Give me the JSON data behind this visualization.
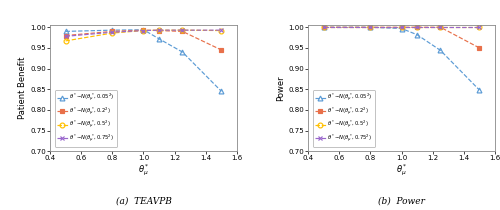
{
  "x": [
    0.5,
    0.8,
    1.0,
    1.1,
    1.25,
    1.5
  ],
  "teavpb": {
    "line1": [
      0.99,
      0.993,
      0.994,
      0.972,
      0.94,
      0.845
    ],
    "line2": [
      0.98,
      0.99,
      0.993,
      0.992,
      0.99,
      0.945
    ],
    "line3": [
      0.967,
      0.986,
      0.992,
      0.993,
      0.993,
      0.992
    ],
    "line4": [
      0.978,
      0.988,
      0.992,
      0.993,
      0.993,
      0.993
    ]
  },
  "power": {
    "line1": [
      1.0,
      1.0,
      0.997,
      0.982,
      0.944,
      0.848
    ],
    "line2": [
      1.0,
      1.0,
      1.0,
      1.0,
      1.0,
      0.95
    ],
    "line3": [
      1.0,
      1.0,
      1.0,
      1.0,
      1.0,
      1.0
    ],
    "line4": [
      1.0,
      1.0,
      1.0,
      1.0,
      1.0,
      1.0
    ]
  },
  "colors": [
    "#5b9bd5",
    "#e8704a",
    "#ffc000",
    "#9966cc"
  ],
  "markers": [
    "^",
    "s",
    "o",
    "x"
  ],
  "legend_labels": [
    "$\\theta^*{\\!\\sim\\!}N(\\theta^*_\\mu, 0.05^2)$",
    "$\\theta^*{\\!\\sim\\!}N(\\theta^*_\\mu, 0.2^2)$",
    "$\\theta^*{\\!\\sim\\!}N(\\theta^*_\\mu, 0.5^2)$",
    "$\\theta^*{\\!\\sim\\!}N(\\theta^*_\\mu, 0.75^2)$"
  ],
  "xlabel": "$\\theta^*_\\mu$",
  "ylabel_a": "Patient Benefit",
  "ylabel_b": "Power",
  "caption_a": "(a)  TEAVPB",
  "caption_b": "(b)  Power",
  "xlim": [
    0.4,
    1.6
  ],
  "ylim_a": [
    0.7,
    1.005
  ],
  "ylim_b": [
    0.7,
    1.005
  ],
  "yticks_a": [
    0.7,
    0.75,
    0.8,
    0.85,
    0.9,
    0.95,
    1.0
  ],
  "yticks_b": [
    0.7,
    0.75,
    0.8,
    0.85,
    0.9,
    0.95,
    1.0
  ],
  "xticks": [
    0.4,
    0.6,
    0.8,
    1.0,
    1.2,
    1.4,
    1.6
  ]
}
